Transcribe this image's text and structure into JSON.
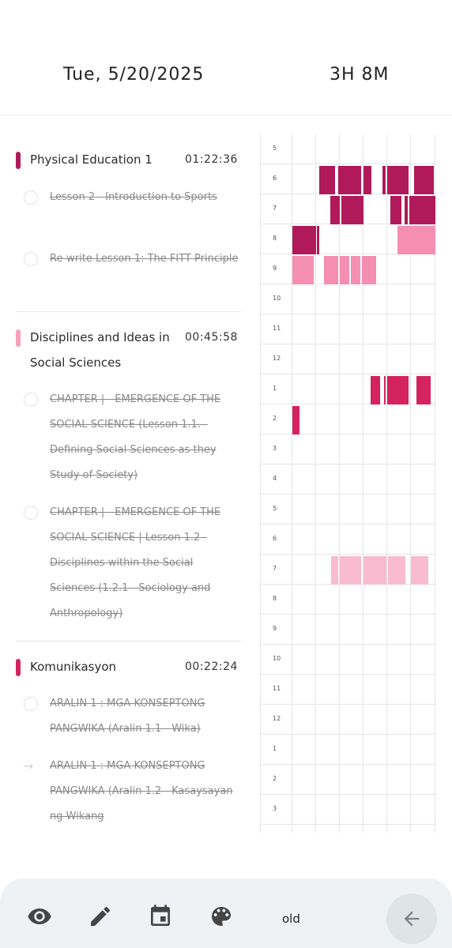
{
  "header": {
    "date": "Tue, 5/20/2025",
    "total": "3H 8M"
  },
  "subjects": [
    {
      "title": "Physical Education 1",
      "time": "01:22:36",
      "color": "#b0195a",
      "tasks": [
        {
          "text": "Lesson 2 - Introduction to Sports",
          "icon": "circle"
        },
        {
          "text": "Re-write Lesson 1: The FITT Principle",
          "icon": "circle"
        }
      ]
    },
    {
      "title": "Disciplines and Ideas in Social Sciences",
      "time": "00:45:58",
      "color": "#f4a0b8",
      "tasks": [
        {
          "text": "CHAPTER | - EMERGENCE OF THE SOCIAL SCIENCE (Lesson 1.1. - Defining Social Sciences as they Study of Society)",
          "icon": "circle"
        },
        {
          "text": "CHAPTER | - EMERGENCE OF THE SOCIAL SCIENCE | Lesson 1.2 - Disciplines within the Social Sciences (1.2.1 - Sociology and Anthropology)",
          "icon": "circle"
        }
      ]
    },
    {
      "title": "Komunikasyon",
      "time": "00:22:24",
      "color": "#d4235e",
      "tasks": [
        {
          "text": "ARALIN 1 : MGA KONSEPTONG PANGWIKA (Aralin 1.1 - Wika)",
          "icon": "circle"
        },
        {
          "text": "ARALIN 1 : MGA KONSEPTONG PANGWIKA (Aralin 1.2 - Kasaysayan ng Wikang",
          "icon": "arrow"
        }
      ]
    }
  ],
  "timeline": {
    "hours": [
      "5",
      "6",
      "7",
      "8",
      "9",
      "10",
      "11",
      "12",
      "1",
      "2",
      "3",
      "4",
      "5",
      "6",
      "7",
      "8",
      "9",
      "10",
      "11",
      "12",
      "1",
      "2",
      "3"
    ],
    "colors": {
      "pe": "#b0195a",
      "pe_light": "#f48fb1",
      "social": "#d4235e",
      "social_light": "#f8bbd0"
    }
  },
  "bottom_nav": {
    "icons": [
      "eye-icon",
      "pencil-icon",
      "calendar-icon",
      "palette-icon"
    ],
    "old_label": "old",
    "back_icon": "arrow-left-icon"
  }
}
